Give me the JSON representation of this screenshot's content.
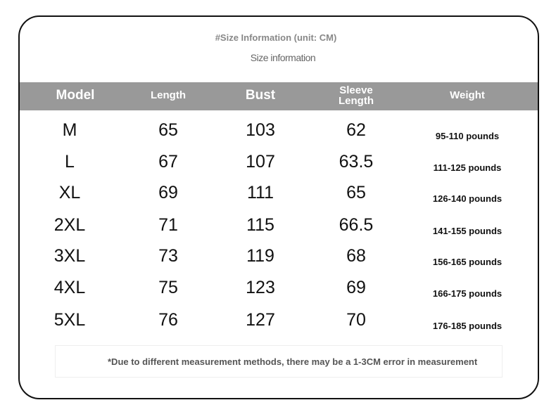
{
  "header": {
    "title": "#Size Information (unit: CM)",
    "subtitle": "Size information"
  },
  "table": {
    "columns": [
      "Model",
      "Length",
      "Bust",
      "Sleeve Length",
      "Weight"
    ],
    "rows": [
      [
        "M",
        65,
        103,
        62,
        "95-110 pounds"
      ],
      [
        "L",
        67,
        107,
        63.5,
        "111-125 pounds"
      ],
      [
        "XL",
        69,
        111,
        65,
        "126-140 pounds"
      ],
      [
        "2XL",
        71,
        115,
        66.5,
        "141-155 pounds"
      ],
      [
        "3XL",
        73,
        119,
        68,
        "156-165 pounds"
      ],
      [
        "4XL",
        75,
        123,
        69,
        "166-175 pounds"
      ],
      [
        "5XL",
        76,
        127,
        70,
        "176-185 pounds"
      ]
    ]
  },
  "note": "*Due to different measurement methods, there may be a 1-3CM error in measurement"
}
